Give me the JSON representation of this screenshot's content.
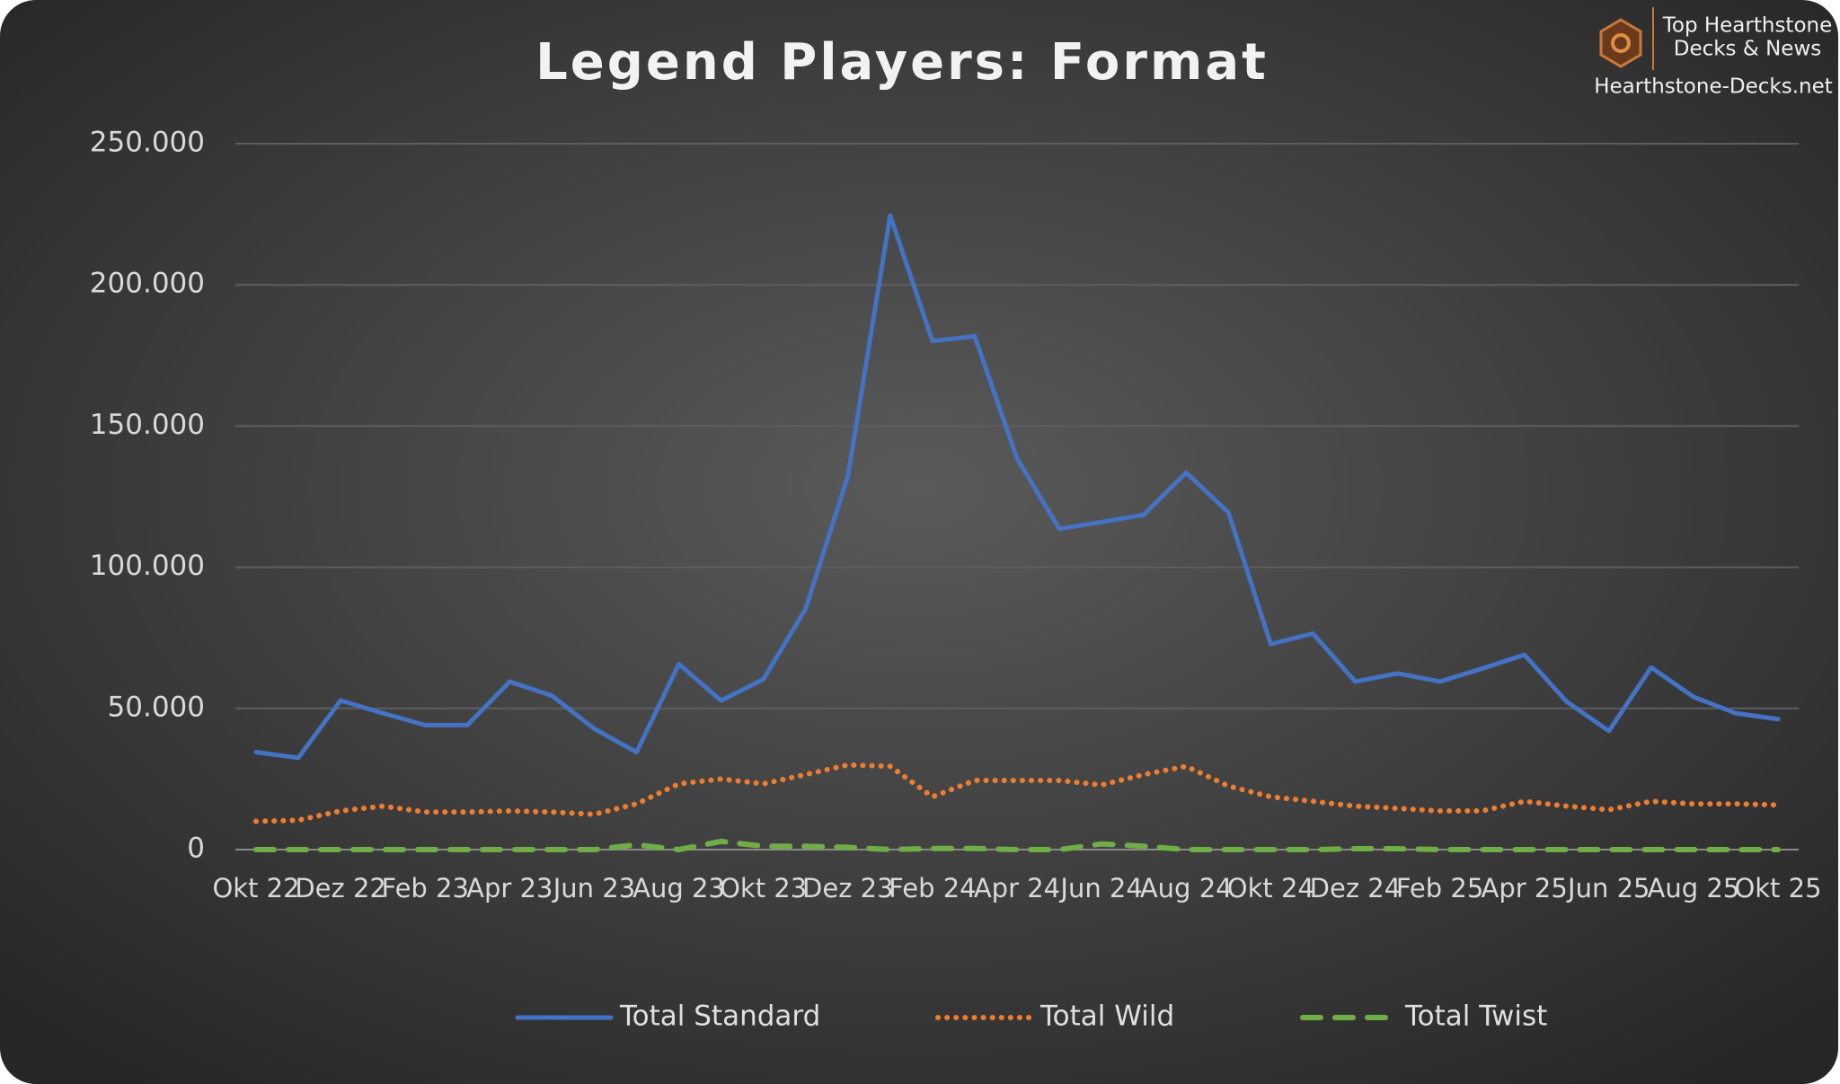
{
  "chart_data": {
    "type": "line",
    "title": "Legend Players: Format",
    "categories": [
      "Okt 22",
      null,
      "Dez 22",
      null,
      "Feb 23",
      null,
      "Apr 23",
      null,
      "Jun 23",
      null,
      "Aug 23",
      null,
      "Okt 23",
      null,
      "Dez 23",
      null,
      "Feb 24",
      null,
      "Apr 24",
      null,
      "Jun 24",
      null,
      "Aug 24",
      null,
      "Okt 24",
      null,
      "Dez 24",
      null,
      "Feb 25",
      null,
      "Apr 25",
      null,
      "Jun 25",
      null,
      "Aug 25",
      null,
      "Okt 25"
    ],
    "series": [
      {
        "name": "Total Standard",
        "color": "#4472c4",
        "style": "solid",
        "values": [
          34500,
          32500,
          52800,
          48300,
          44100,
          44100,
          59500,
          54500,
          42800,
          34500,
          65700,
          52800,
          60300,
          85300,
          132300,
          224600,
          180100,
          181800,
          138500,
          113600,
          116000,
          118600,
          133500,
          119400,
          72800,
          76500,
          59500,
          62400,
          59500,
          64100,
          69000,
          52400,
          42000,
          64500,
          54100,
          48300,
          46200
        ]
      },
      {
        "name": "Total Wild",
        "color": "#ed7d31",
        "style": "dotted",
        "values": [
          10000,
          10400,
          13700,
          15400,
          13300,
          13300,
          13700,
          13300,
          12500,
          16200,
          23300,
          25000,
          23300,
          26600,
          30000,
          29500,
          18700,
          24500,
          24500,
          24500,
          22900,
          26600,
          29500,
          22500,
          18700,
          17100,
          15400,
          14600,
          13700,
          13700,
          17100,
          15400,
          14100,
          17100,
          16200,
          16200,
          15800
        ]
      },
      {
        "name": "Total Twist",
        "color": "#70ad47",
        "style": "dashed",
        "values": [
          0,
          0,
          0,
          0,
          0,
          0,
          0,
          0,
          0,
          1700,
          0,
          2900,
          1200,
          1200,
          800,
          0,
          400,
          400,
          0,
          0,
          2000,
          1200,
          0,
          0,
          0,
          0,
          300,
          300,
          0,
          0,
          0,
          0,
          0,
          0,
          0,
          0,
          0
        ]
      }
    ],
    "ylim": [
      0,
      250000
    ],
    "yticks": [
      {
        "value": 0,
        "label": "0"
      },
      {
        "value": 50000,
        "label": "50.000"
      },
      {
        "value": 100000,
        "label": "100.000"
      },
      {
        "value": 150000,
        "label": "150.000"
      },
      {
        "value": 200000,
        "label": "200.000"
      },
      {
        "value": 250000,
        "label": "250.000"
      }
    ],
    "grid": true,
    "legend": "bottom"
  },
  "branding": {
    "line1": "Top Hearthstone",
    "line2": "Decks & News",
    "site": "Hearthstone-Decks.net"
  }
}
